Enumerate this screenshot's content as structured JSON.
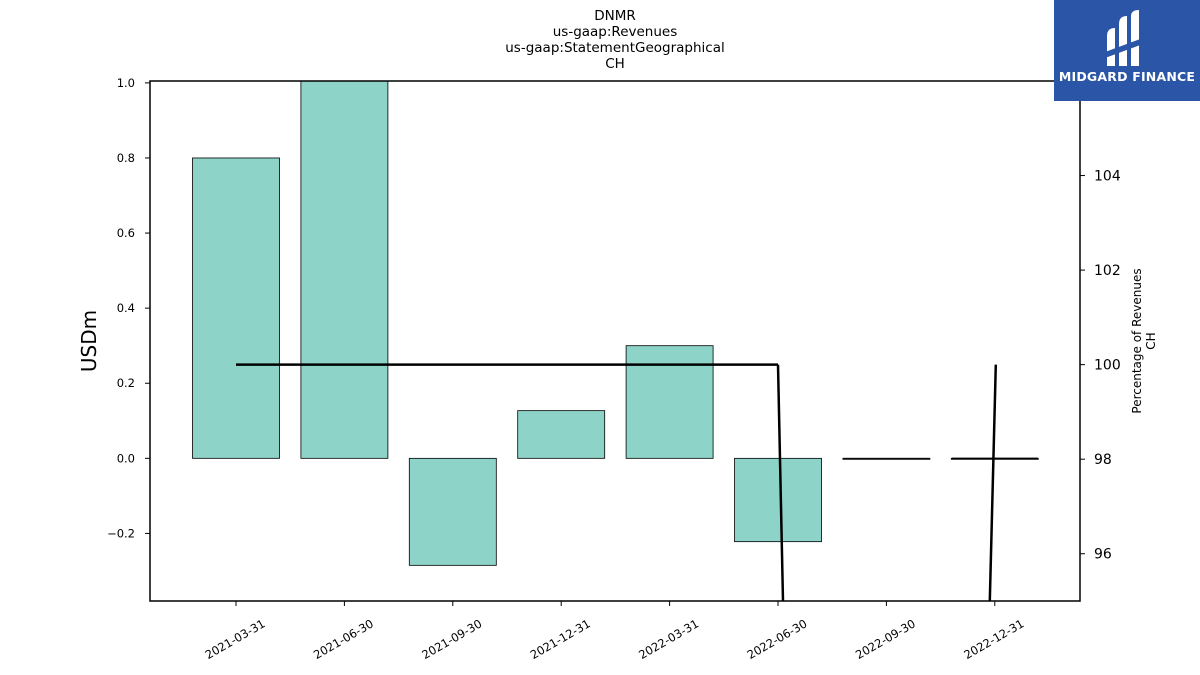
{
  "chart_data": {
    "type": "bar",
    "title_lines": [
      "DNMR",
      "us-gaap:Revenues",
      "us-gaap:StatementGeographical",
      "CH"
    ],
    "categories": [
      "2021-03-31",
      "2021-06-30",
      "2021-09-30",
      "2021-12-31",
      "2022-03-31",
      "2022-06-30",
      "2022-09-30",
      "2022-12-31"
    ],
    "values": [
      0.8,
      1.005,
      -0.285,
      0.127,
      0.3,
      -0.222,
      0.0,
      0.0
    ],
    "ylabel": "USDm",
    "ylim": [
      -0.38,
      1.005
    ],
    "yticks": [
      -0.2,
      0.0,
      0.2,
      0.4,
      0.6,
      0.8,
      1.0
    ],
    "ytick_labels": [
      "−0.2",
      "0.0",
      "0.2",
      "0.4",
      "0.6",
      "0.8",
      "1.0"
    ],
    "bar_color": "#8dd3c7",
    "secondary_axis": {
      "label_lines": [
        "Percentage of Revenues",
        "CH"
      ],
      "ylim": [
        95,
        106
      ],
      "yticks": [
        96,
        98,
        100,
        102,
        104
      ],
      "ytick_labels": [
        "96",
        "98",
        "100",
        "102",
        "104"
      ],
      "series": [
        {
          "type": "line",
          "x_index": [
            0,
            1,
            2,
            3,
            4,
            5,
            6,
            7
          ],
          "values": [
            100,
            100,
            100,
            100,
            100,
            100,
            null,
            null
          ],
          "color": "#000000"
        }
      ]
    }
  },
  "logo": {
    "text": "MIDGARD FINANCE",
    "color": "#2b56a8"
  }
}
